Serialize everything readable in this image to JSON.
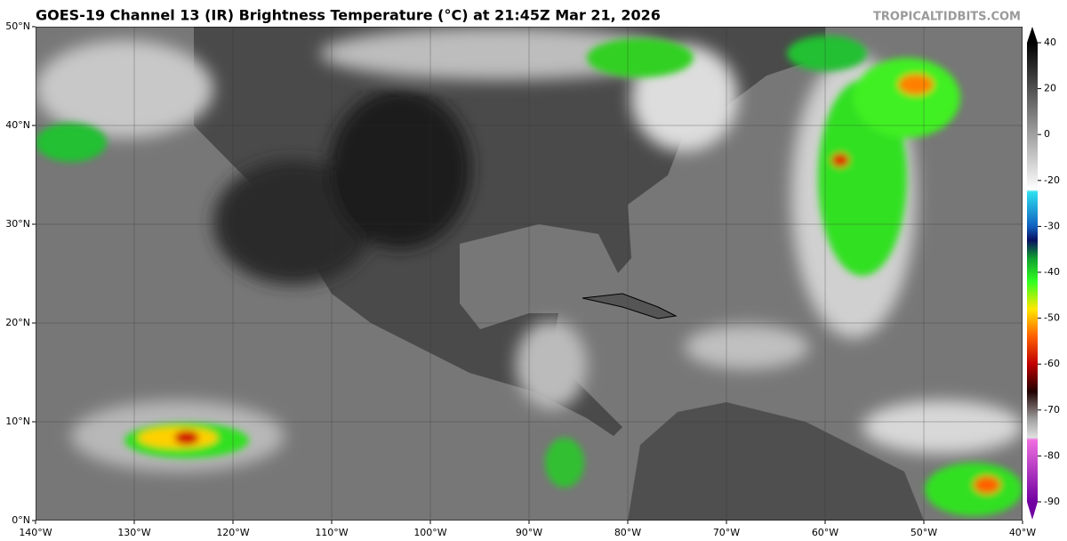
{
  "header": {
    "title": "GOES-19 Channel 13 (IR) Brightness Temperature (°C) at 21:45Z Mar 21, 2026",
    "watermark": "TROPICALTIDBITS.COM"
  },
  "map": {
    "xlim": [
      -140,
      -40
    ],
    "ylim": [
      0,
      50
    ],
    "xticks": [
      {
        "value": -140,
        "label": "140°W"
      },
      {
        "value": -130,
        "label": "130°W"
      },
      {
        "value": -120,
        "label": "120°W"
      },
      {
        "value": -110,
        "label": "110°W"
      },
      {
        "value": -100,
        "label": "100°W"
      },
      {
        "value": -90,
        "label": "90°W"
      },
      {
        "value": -80,
        "label": "80°W"
      },
      {
        "value": -70,
        "label": "70°W"
      },
      {
        "value": -60,
        "label": "60°W"
      },
      {
        "value": -50,
        "label": "50°W"
      },
      {
        "value": -40,
        "label": "40°W"
      }
    ],
    "yticks": [
      {
        "value": 0,
        "label": "0°N"
      },
      {
        "value": 10,
        "label": "10°N"
      },
      {
        "value": 20,
        "label": "20°N"
      },
      {
        "value": 30,
        "label": "30°N"
      },
      {
        "value": 40,
        "label": "40°N"
      },
      {
        "value": 50,
        "label": "50°N"
      }
    ]
  },
  "colorbar": {
    "ticks": [
      40,
      20,
      0,
      -20,
      -30,
      -40,
      -50,
      -60,
      -70,
      -80,
      -90
    ]
  }
}
